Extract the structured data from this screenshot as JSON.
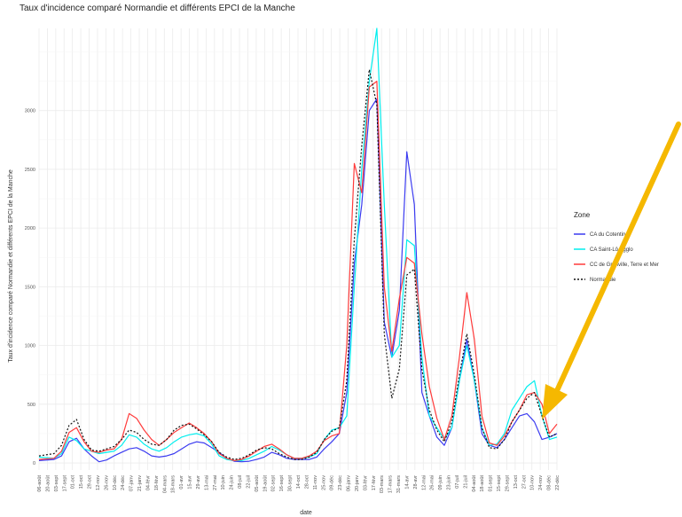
{
  "chart_data": {
    "type": "line",
    "title": "Taux d'incidence comparé Normandie et différents EPCI de la Manche",
    "xlabel": "date",
    "ylabel": "Taux d'incidence comparé Normandie et différents EPCI de la Manche",
    "ylim": [
      -60,
      3700
    ],
    "y_ticks": [
      0,
      500,
      1000,
      1500,
      2000,
      2500,
      3000
    ],
    "x_ticks": [
      "06-août",
      "20-août",
      "03-sept",
      "17-sept",
      "01-oct",
      "15-oct",
      "29-oct",
      "12-nov",
      "26-nov",
      "10-déc",
      "24-déc",
      "07-janv",
      "21-janv",
      "04-févr",
      "18-févr",
      "04-mars",
      "18-mars",
      "01-avr",
      "15-avr",
      "29-avr",
      "13-mai",
      "27-mai",
      "10-juin",
      "24-juin",
      "08-juil",
      "22-juil",
      "05-août",
      "19-août",
      "02-sept",
      "16-sept",
      "30-sept",
      "14-oct",
      "28-oct",
      "11-nov",
      "25-nov",
      "09-déc",
      "23-déc",
      "06-janv",
      "20-janv",
      "03-févr",
      "17-févr",
      "03-mars",
      "17-mars",
      "31-mars",
      "14-avr",
      "28-avr",
      "12-mai",
      "26-mai",
      "09-juin",
      "23-juin",
      "07-juil",
      "21-juil",
      "04-août",
      "18-août",
      "01-sept",
      "15-sept",
      "29-sept",
      "13-oct",
      "27-oct",
      "10-nov",
      "24-nov",
      "08-déc",
      "22-déc"
    ],
    "grid": true,
    "legend": {
      "title": "Zone",
      "position": "right"
    },
    "series": [
      {
        "name": "CA du Cotentin",
        "color": "#3b3bf0",
        "dash": "",
        "points": [
          [
            0,
            20
          ],
          [
            2,
            30
          ],
          [
            3,
            60
          ],
          [
            4,
            180
          ],
          [
            5,
            210
          ],
          [
            6,
            120
          ],
          [
            7,
            60
          ],
          [
            8,
            10
          ],
          [
            9,
            25
          ],
          [
            10,
            60
          ],
          [
            11,
            90
          ],
          [
            12,
            120
          ],
          [
            13,
            130
          ],
          [
            14,
            100
          ],
          [
            15,
            60
          ],
          [
            16,
            50
          ],
          [
            17,
            60
          ],
          [
            18,
            80
          ],
          [
            19,
            120
          ],
          [
            20,
            160
          ],
          [
            21,
            180
          ],
          [
            22,
            170
          ],
          [
            23,
            130
          ],
          [
            24,
            90
          ],
          [
            25,
            40
          ],
          [
            26,
            15
          ],
          [
            27,
            10
          ],
          [
            28,
            15
          ],
          [
            29,
            30
          ],
          [
            30,
            50
          ],
          [
            31,
            90
          ],
          [
            32,
            70
          ],
          [
            33,
            40
          ],
          [
            34,
            30
          ],
          [
            35,
            30
          ],
          [
            36,
            30
          ],
          [
            37,
            50
          ],
          [
            38,
            120
          ],
          [
            39,
            180
          ],
          [
            40,
            250
          ],
          [
            41,
            600
          ],
          [
            42,
            1700
          ],
          [
            43,
            2200
          ],
          [
            44,
            3000
          ],
          [
            45,
            3100
          ],
          [
            46,
            1200
          ],
          [
            47,
            900
          ],
          [
            48,
            1300
          ],
          [
            49,
            2650
          ],
          [
            50,
            2200
          ],
          [
            51,
            600
          ],
          [
            52,
            400
          ],
          [
            53,
            220
          ],
          [
            54,
            150
          ],
          [
            55,
            300
          ],
          [
            56,
            700
          ],
          [
            57,
            1050
          ],
          [
            58,
            700
          ],
          [
            59,
            250
          ],
          [
            60,
            150
          ],
          [
            61,
            130
          ],
          [
            62,
            200
          ],
          [
            63,
            300
          ],
          [
            64,
            400
          ],
          [
            65,
            420
          ],
          [
            66,
            350
          ],
          [
            67,
            200
          ],
          [
            68,
            220
          ],
          [
            69,
            250
          ]
        ]
      },
      {
        "name": "CA Saint-Lô Agglo",
        "color": "#00eeee",
        "dash": "",
        "points": [
          [
            0,
            50
          ],
          [
            2,
            40
          ],
          [
            3,
            80
          ],
          [
            4,
            220
          ],
          [
            5,
            190
          ],
          [
            6,
            120
          ],
          [
            7,
            100
          ],
          [
            8,
            80
          ],
          [
            9,
            90
          ],
          [
            10,
            100
          ],
          [
            11,
            150
          ],
          [
            12,
            240
          ],
          [
            13,
            220
          ],
          [
            14,
            160
          ],
          [
            15,
            120
          ],
          [
            16,
            100
          ],
          [
            17,
            130
          ],
          [
            18,
            180
          ],
          [
            19,
            220
          ],
          [
            20,
            240
          ],
          [
            21,
            250
          ],
          [
            22,
            230
          ],
          [
            23,
            160
          ],
          [
            24,
            60
          ],
          [
            25,
            30
          ],
          [
            26,
            20
          ],
          [
            27,
            20
          ],
          [
            28,
            40
          ],
          [
            29,
            70
          ],
          [
            30,
            100
          ],
          [
            31,
            140
          ],
          [
            32,
            110
          ],
          [
            33,
            70
          ],
          [
            34,
            40
          ],
          [
            35,
            40
          ],
          [
            36,
            50
          ],
          [
            37,
            80
          ],
          [
            38,
            200
          ],
          [
            39,
            280
          ],
          [
            40,
            300
          ],
          [
            41,
            400
          ],
          [
            42,
            1500
          ],
          [
            43,
            2500
          ],
          [
            44,
            3250
          ],
          [
            45,
            3700
          ],
          [
            46,
            2200
          ],
          [
            47,
            900
          ],
          [
            48,
            1000
          ],
          [
            49,
            1900
          ],
          [
            50,
            1850
          ],
          [
            51,
            900
          ],
          [
            52,
            400
          ],
          [
            53,
            300
          ],
          [
            54,
            200
          ],
          [
            55,
            300
          ],
          [
            56,
            700
          ],
          [
            57,
            1000
          ],
          [
            58,
            700
          ],
          [
            59,
            300
          ],
          [
            60,
            150
          ],
          [
            61,
            160
          ],
          [
            62,
            250
          ],
          [
            63,
            450
          ],
          [
            64,
            550
          ],
          [
            65,
            650
          ],
          [
            66,
            700
          ],
          [
            67,
            400
          ],
          [
            68,
            200
          ],
          [
            69,
            220
          ]
        ]
      },
      {
        "name": "CC de Granville, Terre et Mer",
        "color": "#ff3b3b",
        "dash": "",
        "points": [
          [
            0,
            30
          ],
          [
            2,
            40
          ],
          [
            3,
            100
          ],
          [
            4,
            260
          ],
          [
            5,
            300
          ],
          [
            6,
            180
          ],
          [
            7,
            100
          ],
          [
            8,
            90
          ],
          [
            9,
            110
          ],
          [
            10,
            120
          ],
          [
            11,
            200
          ],
          [
            12,
            420
          ],
          [
            13,
            380
          ],
          [
            14,
            280
          ],
          [
            15,
            200
          ],
          [
            16,
            150
          ],
          [
            17,
            200
          ],
          [
            18,
            260
          ],
          [
            19,
            300
          ],
          [
            20,
            340
          ],
          [
            21,
            300
          ],
          [
            22,
            250
          ],
          [
            23,
            180
          ],
          [
            24,
            80
          ],
          [
            25,
            40
          ],
          [
            26,
            20
          ],
          [
            27,
            30
          ],
          [
            28,
            60
          ],
          [
            29,
            100
          ],
          [
            30,
            140
          ],
          [
            31,
            160
          ],
          [
            32,
            120
          ],
          [
            33,
            70
          ],
          [
            34,
            40
          ],
          [
            35,
            40
          ],
          [
            36,
            60
          ],
          [
            37,
            100
          ],
          [
            38,
            190
          ],
          [
            39,
            230
          ],
          [
            40,
            250
          ],
          [
            41,
            1000
          ],
          [
            42,
            2550
          ],
          [
            43,
            2300
          ],
          [
            44,
            3200
          ],
          [
            45,
            3250
          ],
          [
            46,
            1500
          ],
          [
            47,
            950
          ],
          [
            48,
            1400
          ],
          [
            49,
            1750
          ],
          [
            50,
            1700
          ],
          [
            51,
            1100
          ],
          [
            52,
            650
          ],
          [
            53,
            380
          ],
          [
            54,
            200
          ],
          [
            55,
            400
          ],
          [
            56,
            900
          ],
          [
            57,
            1450
          ],
          [
            58,
            1050
          ],
          [
            59,
            400
          ],
          [
            60,
            170
          ],
          [
            61,
            150
          ],
          [
            62,
            230
          ],
          [
            63,
            350
          ],
          [
            64,
            450
          ],
          [
            65,
            580
          ],
          [
            66,
            600
          ],
          [
            67,
            500
          ],
          [
            68,
            250
          ],
          [
            69,
            330
          ]
        ]
      },
      {
        "name": "Normandie",
        "color": "#111111",
        "dash": "2,2",
        "points": [
          [
            0,
            60
          ],
          [
            2,
            80
          ],
          [
            3,
            150
          ],
          [
            4,
            320
          ],
          [
            5,
            370
          ],
          [
            6,
            200
          ],
          [
            7,
            110
          ],
          [
            8,
            100
          ],
          [
            9,
            120
          ],
          [
            10,
            140
          ],
          [
            11,
            200
          ],
          [
            12,
            280
          ],
          [
            13,
            260
          ],
          [
            14,
            200
          ],
          [
            15,
            160
          ],
          [
            16,
            150
          ],
          [
            17,
            200
          ],
          [
            18,
            280
          ],
          [
            19,
            320
          ],
          [
            20,
            330
          ],
          [
            21,
            290
          ],
          [
            22,
            240
          ],
          [
            23,
            180
          ],
          [
            24,
            90
          ],
          [
            25,
            50
          ],
          [
            26,
            30
          ],
          [
            27,
            40
          ],
          [
            28,
            70
          ],
          [
            29,
            110
          ],
          [
            30,
            130
          ],
          [
            31,
            120
          ],
          [
            32,
            80
          ],
          [
            33,
            50
          ],
          [
            34,
            30
          ],
          [
            35,
            30
          ],
          [
            36,
            50
          ],
          [
            37,
            90
          ],
          [
            38,
            200
          ],
          [
            39,
            270
          ],
          [
            40,
            300
          ],
          [
            41,
            700
          ],
          [
            42,
            1900
          ],
          [
            43,
            2700
          ],
          [
            44,
            3350
          ],
          [
            45,
            3050
          ],
          [
            46,
            1100
          ],
          [
            47,
            550
          ],
          [
            48,
            800
          ],
          [
            49,
            1600
          ],
          [
            50,
            1650
          ],
          [
            51,
            800
          ],
          [
            52,
            450
          ],
          [
            53,
            280
          ],
          [
            54,
            180
          ],
          [
            55,
            350
          ],
          [
            56,
            750
          ],
          [
            57,
            1100
          ],
          [
            58,
            750
          ],
          [
            59,
            300
          ],
          [
            60,
            130
          ],
          [
            61,
            120
          ],
          [
            62,
            200
          ],
          [
            63,
            350
          ],
          [
            64,
            450
          ],
          [
            65,
            550
          ],
          [
            66,
            600
          ],
          [
            67,
            400
          ],
          [
            68,
            220
          ],
          [
            69,
            250
          ]
        ]
      }
    ]
  },
  "annotation": {
    "type": "arrow",
    "color": "#f5b800"
  }
}
